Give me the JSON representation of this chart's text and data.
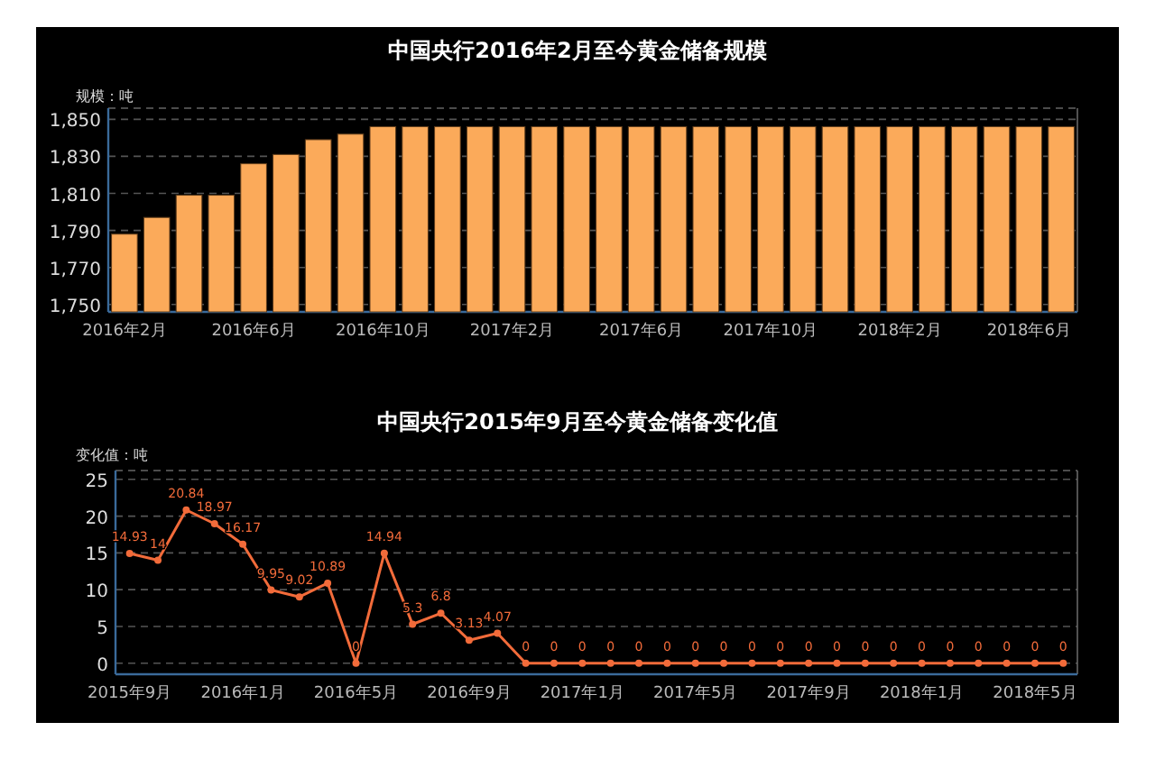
{
  "chart_data": [
    {
      "type": "bar",
      "title": "中国央行2016年2月至今黄金储备规模",
      "ylabel": "规模：吨",
      "categories": [
        "2016年2月",
        null,
        null,
        null,
        "2016年6月",
        null,
        null,
        null,
        "2016年10月",
        null,
        null,
        null,
        "2017年2月",
        null,
        null,
        null,
        "2017年6月",
        null,
        null,
        null,
        "2017年10月",
        null,
        null,
        null,
        "2018年2月",
        null,
        null,
        null,
        "2018年6月",
        null
      ],
      "values": [
        1788,
        1797,
        1809,
        1809,
        1826,
        1831,
        1839,
        1842,
        1846,
        1846,
        1846,
        1846,
        1846,
        1846,
        1846,
        1846,
        1846,
        1846,
        1846,
        1846,
        1846,
        1846,
        1846,
        1846,
        1846,
        1846,
        1846,
        1846,
        1846,
        1846
      ],
      "color": "#fbaa5a",
      "ylim": [
        1746,
        1856
      ],
      "yticks": [
        {
          "value": 1750,
          "label": "1,750"
        },
        {
          "value": 1770,
          "label": "1,770"
        },
        {
          "value": 1790,
          "label": "1,790"
        },
        {
          "value": 1810,
          "label": "1,810"
        },
        {
          "value": 1830,
          "label": "1,830"
        },
        {
          "value": 1850,
          "label": "1,850"
        }
      ],
      "grid": "y"
    },
    {
      "type": "line",
      "title": "中国央行2015年9月至今黄金储备变化值",
      "ylabel": "变化值：吨",
      "categories": [
        "2015年9月",
        null,
        null,
        null,
        "2016年1月",
        null,
        null,
        null,
        "2016年5月",
        null,
        null,
        null,
        "2016年9月",
        null,
        null,
        null,
        "2017年1月",
        null,
        null,
        null,
        "2017年5月",
        null,
        null,
        null,
        "2017年9月",
        null,
        null,
        null,
        "2018年1月",
        null,
        null,
        null,
        "2018年5月",
        null
      ],
      "values": [
        14.93,
        14,
        20.84,
        18.97,
        16.17,
        9.95,
        9.02,
        10.89,
        0,
        14.94,
        5.3,
        6.8,
        3.13,
        4.07,
        0,
        0,
        0,
        0,
        0,
        0,
        0,
        0,
        0,
        0,
        0,
        0,
        0,
        0,
        0,
        0,
        0,
        0,
        0,
        0
      ],
      "color": "#f26b3a",
      "ylim": [
        -1.5,
        26.2
      ],
      "yticks": [
        0,
        5,
        10,
        15,
        20,
        25
      ],
      "grid": "y",
      "marker": "circle",
      "data_labels": true
    }
  ]
}
